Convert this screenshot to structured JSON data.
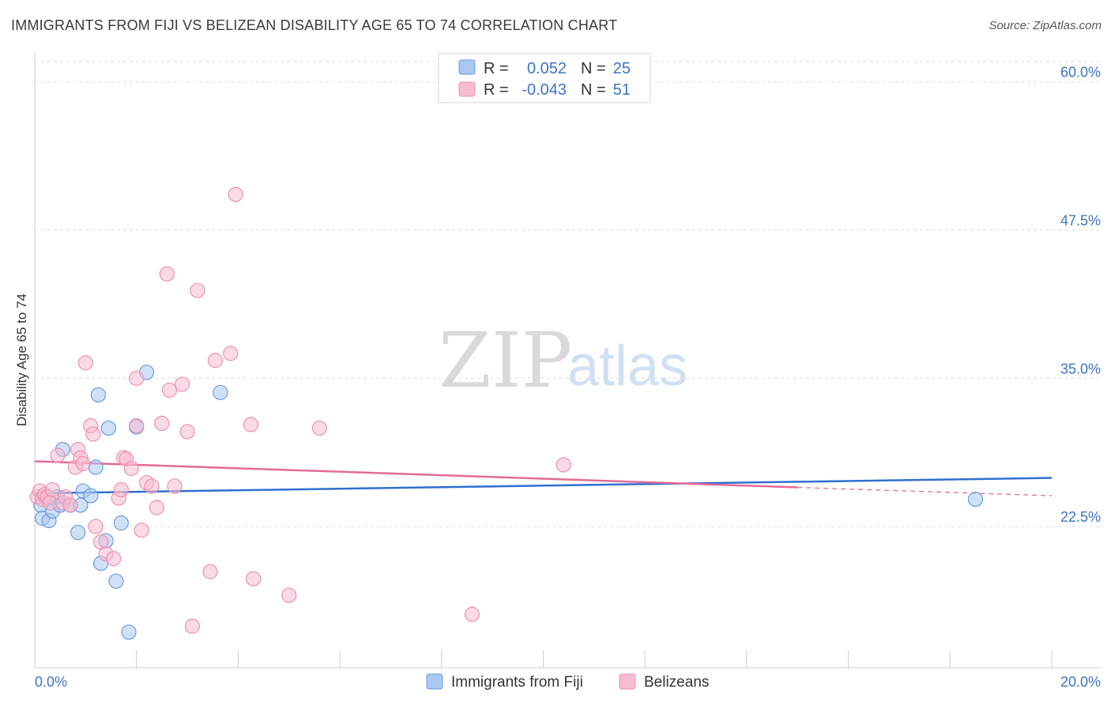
{
  "header": {
    "title": "IMMIGRANTS FROM FIJI VS BELIZEAN DISABILITY AGE 65 TO 74 CORRELATION CHART",
    "source": "Source: ZipAtlas.com"
  },
  "colors": {
    "fiji_fill": "#a9c8f0",
    "fiji_stroke": "#6a9be0",
    "fiji_line": "#2f6fd0",
    "belize_fill": "#f6bcd0",
    "belize_stroke": "#ec90b0",
    "belize_line": "#e46a96",
    "grid": "#dddddd",
    "axis_text": "#3b74c4"
  },
  "legend": {
    "rows": [
      {
        "r_label": "R =",
        "r_value": "0.052",
        "n_label": "N =",
        "n_value": "25"
      },
      {
        "r_label": "R =",
        "r_value": "-0.043",
        "n_label": "N =",
        "n_value": "51"
      }
    ]
  },
  "watermark": {
    "zip": "ZIP",
    "atlas": "atlas"
  },
  "chart_data": {
    "type": "scatter",
    "title": "IMMIGRANTS FROM FIJI VS BELIZEAN DISABILITY AGE 65 TO 74 CORRELATION CHART",
    "xlabel": "",
    "ylabel": "Disability Age 65 to 74",
    "xlim": [
      0,
      20
    ],
    "ylim": [
      10.6,
      62.5
    ],
    "x_tick_labels": [
      "0.0%",
      "20.0%"
    ],
    "y_ticks": [
      22.5,
      35.0,
      47.5,
      60.0
    ],
    "y_tick_labels": [
      "22.5%",
      "35.0%",
      "47.5%",
      "60.0%"
    ],
    "grid": true,
    "legend_position": "top-center",
    "series": [
      {
        "name": "Immigrants from Fiji",
        "color": "fiji",
        "trend": {
          "x": [
            0,
            20
          ],
          "y": [
            25.3,
            26.6
          ],
          "dashed_from": null
        },
        "points": [
          [
            0.12,
            24.3
          ],
          [
            0.15,
            23.2
          ],
          [
            0.2,
            25.0
          ],
          [
            0.28,
            23.0
          ],
          [
            0.35,
            23.8
          ],
          [
            0.45,
            25.0
          ],
          [
            0.5,
            24.3
          ],
          [
            0.55,
            29.0
          ],
          [
            0.7,
            24.3
          ],
          [
            0.85,
            22.0
          ],
          [
            0.95,
            25.5
          ],
          [
            1.1,
            25.1
          ],
          [
            1.2,
            27.5
          ],
          [
            1.25,
            33.6
          ],
          [
            1.3,
            19.4
          ],
          [
            1.45,
            30.8
          ],
          [
            1.6,
            17.9
          ],
          [
            1.7,
            22.8
          ],
          [
            1.85,
            13.6
          ],
          [
            2.0,
            30.9
          ],
          [
            2.2,
            35.5
          ],
          [
            3.65,
            33.8
          ],
          [
            1.4,
            21.3
          ],
          [
            0.9,
            24.3
          ],
          [
            18.5,
            24.8
          ]
        ]
      },
      {
        "name": "Belizeans",
        "color": "belize",
        "trend": {
          "x": [
            0,
            15.0
          ],
          "y": [
            28.0,
            25.8
          ],
          "dashed_from": 15.0,
          "dashed_to": [
            20,
            25.1
          ]
        },
        "points": [
          [
            0.05,
            25.0
          ],
          [
            0.1,
            25.5
          ],
          [
            0.15,
            24.8
          ],
          [
            0.2,
            25.2
          ],
          [
            0.25,
            25.0
          ],
          [
            0.3,
            24.5
          ],
          [
            0.35,
            25.6
          ],
          [
            0.45,
            28.5
          ],
          [
            0.55,
            24.5
          ],
          [
            0.6,
            25.0
          ],
          [
            0.7,
            24.3
          ],
          [
            0.8,
            27.5
          ],
          [
            0.85,
            29.0
          ],
          [
            0.9,
            28.3
          ],
          [
            0.95,
            27.8
          ],
          [
            1.0,
            36.3
          ],
          [
            1.1,
            31.0
          ],
          [
            1.15,
            30.3
          ],
          [
            1.2,
            22.5
          ],
          [
            1.3,
            21.2
          ],
          [
            1.4,
            20.2
          ],
          [
            1.55,
            19.8
          ],
          [
            1.65,
            24.9
          ],
          [
            1.7,
            25.6
          ],
          [
            1.75,
            28.3
          ],
          [
            1.8,
            28.2
          ],
          [
            1.9,
            27.4
          ],
          [
            2.0,
            35.0
          ],
          [
            2.1,
            22.2
          ],
          [
            2.2,
            26.2
          ],
          [
            2.3,
            25.9
          ],
          [
            2.4,
            24.1
          ],
          [
            2.5,
            31.2
          ],
          [
            2.6,
            43.8
          ],
          [
            2.65,
            34.0
          ],
          [
            2.75,
            25.9
          ],
          [
            2.9,
            34.5
          ],
          [
            3.0,
            30.5
          ],
          [
            3.2,
            42.4
          ],
          [
            3.1,
            14.1
          ],
          [
            3.45,
            18.7
          ],
          [
            3.55,
            36.5
          ],
          [
            3.85,
            37.1
          ],
          [
            3.95,
            50.5
          ],
          [
            4.25,
            31.1
          ],
          [
            4.3,
            18.1
          ],
          [
            5.0,
            16.7
          ],
          [
            5.6,
            30.8
          ],
          [
            8.6,
            15.1
          ],
          [
            10.4,
            27.7
          ],
          [
            2.0,
            31.0
          ]
        ]
      }
    ]
  },
  "bottom_legend": {
    "items": [
      {
        "label": "Immigrants from Fiji"
      },
      {
        "label": "Belizeans"
      }
    ]
  }
}
